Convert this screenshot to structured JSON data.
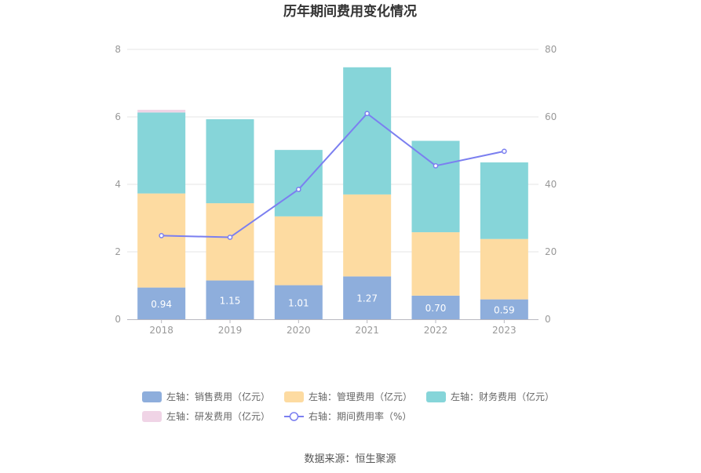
{
  "chart_data": {
    "type": "bar",
    "title": "历年期间费用变化情况",
    "categories": [
      "2018",
      "2019",
      "2020",
      "2021",
      "2022",
      "2023"
    ],
    "y_left": {
      "ticks": [
        "0",
        "2",
        "4",
        "6",
        "8"
      ],
      "range": [
        0,
        8
      ]
    },
    "y_right": {
      "ticks": [
        "0",
        "20",
        "40",
        "60",
        "80"
      ],
      "range": [
        0,
        80
      ]
    },
    "series": [
      {
        "name": "左轴：销售费用（亿元）",
        "kind": "bar",
        "axis": "left",
        "color": "#8eaedc",
        "values": [
          0.94,
          1.15,
          1.01,
          1.27,
          0.7,
          0.59
        ],
        "labels": [
          "0.94",
          "1.15",
          "1.01",
          "1.27",
          "0.70",
          "0.59"
        ]
      },
      {
        "name": "左轴：管理费用（亿元）",
        "kind": "bar",
        "axis": "left",
        "color": "#fddba1",
        "values": [
          2.79,
          2.29,
          2.04,
          2.43,
          1.88,
          1.79
        ]
      },
      {
        "name": "左轴：财务费用（亿元）",
        "kind": "bar",
        "axis": "left",
        "color": "#86d5d9",
        "values": [
          2.4,
          2.49,
          1.97,
          3.77,
          2.71,
          2.27
        ]
      },
      {
        "name": "左轴：研发费用（亿元）",
        "kind": "bar",
        "axis": "left",
        "color": "#f0d4e6",
        "values": [
          0.08,
          0,
          0,
          0,
          0,
          0
        ]
      },
      {
        "name": "右轴：期间费用率（%）",
        "kind": "line",
        "axis": "right",
        "color": "#7b7ff0",
        "values": [
          24.8,
          24.3,
          38.5,
          61.0,
          45.5,
          49.8
        ]
      }
    ],
    "legend_position": "bottom",
    "grid": true
  },
  "footer": {
    "source": "数据来源：恒生聚源"
  }
}
